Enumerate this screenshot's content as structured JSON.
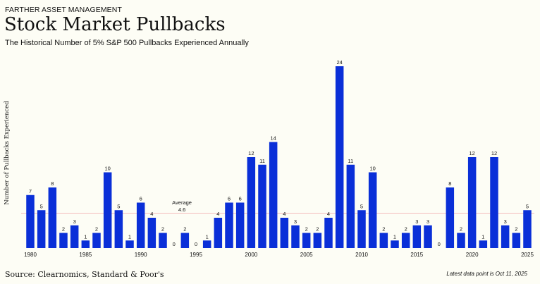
{
  "header": {
    "brand": "FARTHER ASSET MANAGEMENT",
    "title": "Stock Market Pullbacks",
    "subtitle": "The Historical Number of 5% S&P 500 Pullbacks Experienced Annually"
  },
  "footer": {
    "source": "Source: Clearnomics, Standard & Poor's",
    "note": "Latest data point is Oct 11, 2025"
  },
  "colors": {
    "bar": "#0a2fd8",
    "average_line": "#f3b3b3",
    "text": "#111111"
  },
  "chart_data": {
    "type": "bar",
    "ylabel": "Number of Pullbacks Experienced",
    "xlabel": "",
    "ylim": [
      0,
      24
    ],
    "x": [
      1980,
      1981,
      1982,
      1983,
      1984,
      1985,
      1986,
      1987,
      1988,
      1989,
      1990,
      1991,
      1992,
      1993,
      1994,
      1995,
      1996,
      1997,
      1998,
      1999,
      2000,
      2001,
      2002,
      2003,
      2004,
      2005,
      2006,
      2007,
      2008,
      2009,
      2010,
      2011,
      2012,
      2013,
      2014,
      2015,
      2016,
      2017,
      2018,
      2019,
      2020,
      2021,
      2022,
      2023,
      2024,
      2025
    ],
    "values": [
      7,
      5,
      8,
      2,
      3,
      1,
      2,
      10,
      5,
      1,
      6,
      4,
      2,
      0,
      2,
      0,
      1,
      4,
      6,
      6,
      12,
      11,
      14,
      4,
      3,
      2,
      2,
      4,
      24,
      11,
      5,
      10,
      2,
      1,
      2,
      3,
      3,
      0,
      8,
      2,
      12,
      1,
      12,
      3,
      2,
      5
    ],
    "x_ticks": [
      "1980",
      "1985",
      "1990",
      "1995",
      "2000",
      "2005",
      "2010",
      "2015",
      "2020",
      "2025"
    ],
    "average": {
      "label": "Average",
      "value": 4.6,
      "value_label": "4.6"
    }
  }
}
